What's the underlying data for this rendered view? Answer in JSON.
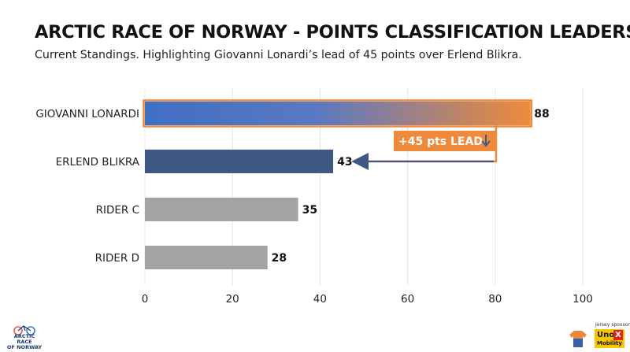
{
  "title": "ARCTIC RACE OF NORWAY - POINTS CLASSIFICATION LEADERS",
  "subtitle": "Current Standings. Highlighting Giovanni Lonardi’s lead of 45 points over Erlend Blikra.",
  "chart_data": {
    "type": "bar",
    "orientation": "horizontal",
    "categories": [
      "GIOVANNI LONARDI",
      "ERLEND BLIKRA",
      "RIDER C",
      "RIDER D"
    ],
    "values": [
      88,
      43,
      35,
      28
    ],
    "xlim": [
      0,
      100
    ],
    "xticks": [
      0,
      20,
      40,
      60,
      80,
      100
    ],
    "grid": true,
    "annotation": "+45 pts LEAD",
    "colors": {
      "leader_start": "#3f6fc4",
      "leader_end": "#ef8a3c",
      "second": "#3f5783",
      "others": "#a3a3a3",
      "highlight": "#ef8a3c",
      "arrow": "#3f5783"
    }
  },
  "branding": {
    "logo_text_line1": "ARCTIC RACE",
    "logo_text_line2": "OF NORWAY",
    "sponsor_label": "Jersey sponsor",
    "sponsor_name_top": "Uno",
    "sponsor_name_x": "X",
    "sponsor_name_bottom": "Mobility",
    "jersey_icon": "jersey-icon",
    "bike_icon": "bicycle-icon"
  }
}
